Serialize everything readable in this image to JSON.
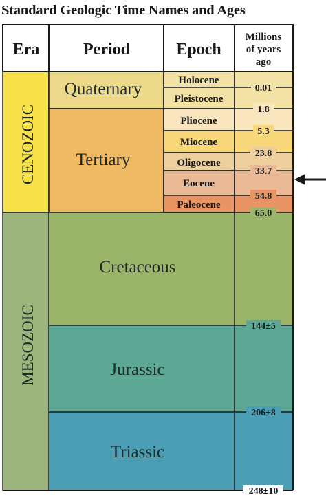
{
  "title": "Standard Geologic Time Names and Ages",
  "headers": {
    "era": "Era",
    "period": "Period",
    "epoch": "Epoch",
    "age_line1": "Millions",
    "age_line2": "of years",
    "age_line3": "ago"
  },
  "eras": [
    {
      "name": "CENOZOIC",
      "color": "#f7e24a"
    },
    {
      "name": "MESOZOIC",
      "color": "#9bb57c"
    }
  ],
  "periods": [
    {
      "name": "Quaternary",
      "color": "#ecd98a"
    },
    {
      "name": "Tertiary",
      "color": "#efba63"
    },
    {
      "name": "Cretaceous",
      "color": "#9ab56a"
    },
    {
      "name": "Jurassic",
      "color": "#5da895"
    },
    {
      "name": "Triassic",
      "color": "#4b9eb4"
    }
  ],
  "epochs": [
    {
      "name": "Holocene",
      "color": "#f2e2a6"
    },
    {
      "name": "Pleistocene",
      "color": "#f2e2a6"
    },
    {
      "name": "Pliocene",
      "color": "#f9e6bf"
    },
    {
      "name": "Miocene",
      "color": "#f7d77a"
    },
    {
      "name": "Oligocene",
      "color": "#eccf9c"
    },
    {
      "name": "Eocene",
      "color": "#e9b894"
    },
    {
      "name": "Paleocene",
      "color": "#e99463"
    }
  ],
  "ages": [
    "0.01",
    "1.8",
    "5.3",
    "23.8",
    "33.7",
    "54.8",
    "65.0",
    "144±5",
    "206±8",
    "248±10"
  ],
  "marker": {
    "name": "arrow",
    "points_to": "33.7"
  }
}
